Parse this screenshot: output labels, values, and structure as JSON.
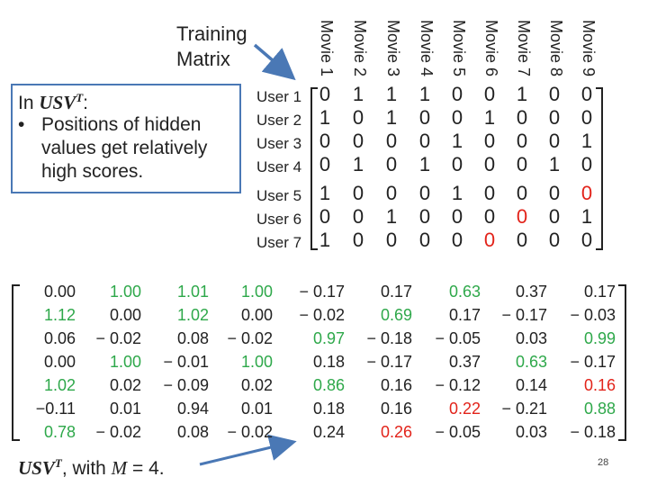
{
  "title": [
    "Training",
    "Matrix"
  ],
  "note": {
    "lead_text": "In ",
    "formula": "USV",
    "formula_sup": "T",
    "lead_suffix": ":",
    "bullet": "•",
    "text": "Positions of hidden values get relatively high scores."
  },
  "movies": [
    "Movie 1",
    "Movie 2",
    "Movie 3",
    "Movie 4",
    "Movie 5",
    "Movie 6",
    "Movie 7",
    "Movie 8",
    "Movie 9"
  ],
  "users": [
    "User 1",
    "User 2",
    "User 3",
    "User 4",
    "User 5",
    "User 6",
    "User 7"
  ],
  "training_matrix": [
    [
      "0",
      "1",
      "1",
      "1",
      "0",
      "0",
      "1",
      "0",
      "0"
    ],
    [
      "1",
      "0",
      "1",
      "0",
      "0",
      "1",
      "0",
      "0",
      "0"
    ],
    [
      "0",
      "0",
      "0",
      "0",
      "1",
      "0",
      "0",
      "0",
      "1"
    ],
    [
      "0",
      "1",
      "0",
      "1",
      "0",
      "0",
      "0",
      "1",
      "0"
    ],
    [
      "1",
      "0",
      "0",
      "0",
      "1",
      "0",
      "0",
      "0",
      "0"
    ],
    [
      "0",
      "0",
      "1",
      "0",
      "0",
      "0",
      "0",
      "0",
      "1"
    ],
    [
      "1",
      "0",
      "0",
      "0",
      "0",
      "0",
      "0",
      "0",
      "0"
    ]
  ],
  "hidden_cells": [
    [
      4,
      8
    ],
    [
      5,
      6
    ],
    [
      6,
      5
    ]
  ],
  "usv_matrix": [
    [
      "0.00",
      "1.00",
      "1.01",
      "1.00",
      "− 0.17",
      "0.17",
      "0.63",
      "0.37",
      "0.17"
    ],
    [
      "1.12",
      "0.00",
      "1.02",
      "0.00",
      "− 0.02",
      "0.69",
      "0.17",
      "− 0.17",
      "− 0.03"
    ],
    [
      "0.06",
      "− 0.02",
      "0.08",
      "− 0.02",
      "0.97",
      "− 0.18",
      "− 0.05",
      "0.03",
      "0.99"
    ],
    [
      "0.00",
      "1.00",
      "− 0.01",
      "1.00",
      "0.18",
      "− 0.17",
      "0.37",
      "0.63",
      "− 0.17"
    ],
    [
      "1.02",
      "0.02",
      "− 0.09",
      "0.02",
      "0.86",
      "0.16",
      "− 0.12",
      "0.14",
      "0.16"
    ],
    [
      "−0.11",
      "0.01",
      "0.94",
      "0.01",
      "0.18",
      "0.16",
      "0.22",
      "− 0.21",
      "0.88"
    ],
    [
      "0.78",
      "− 0.02",
      "0.08",
      "− 0.02",
      "0.24",
      "0.26",
      "− 0.05",
      "0.03",
      "− 0.18"
    ]
  ],
  "usv_colors": [
    [
      "k",
      "g",
      "g",
      "g",
      "k",
      "k",
      "g",
      "k",
      "k"
    ],
    [
      "g",
      "k",
      "g",
      "k",
      "k",
      "g",
      "k",
      "k",
      "k"
    ],
    [
      "k",
      "k",
      "k",
      "k",
      "g",
      "k",
      "k",
      "k",
      "g"
    ],
    [
      "k",
      "g",
      "k",
      "g",
      "k",
      "k",
      "k",
      "g",
      "k"
    ],
    [
      "g",
      "k",
      "k",
      "k",
      "g",
      "k",
      "k",
      "k",
      "r"
    ],
    [
      "k",
      "k",
      "k",
      "k",
      "k",
      "k",
      "r",
      "k",
      "g"
    ],
    [
      "g",
      "k",
      "k",
      "k",
      "k",
      "r",
      "k",
      "k",
      "k"
    ]
  ],
  "colors": {
    "red": "#e2231a",
    "green": "#2ea84a",
    "box": "#4a78b5",
    "arrow": "#4a78b5"
  },
  "caption": {
    "formula": "USV",
    "formula_sup": "T",
    "text": ", with ",
    "var": "M",
    "rest": " = 4."
  },
  "page_number": "28"
}
